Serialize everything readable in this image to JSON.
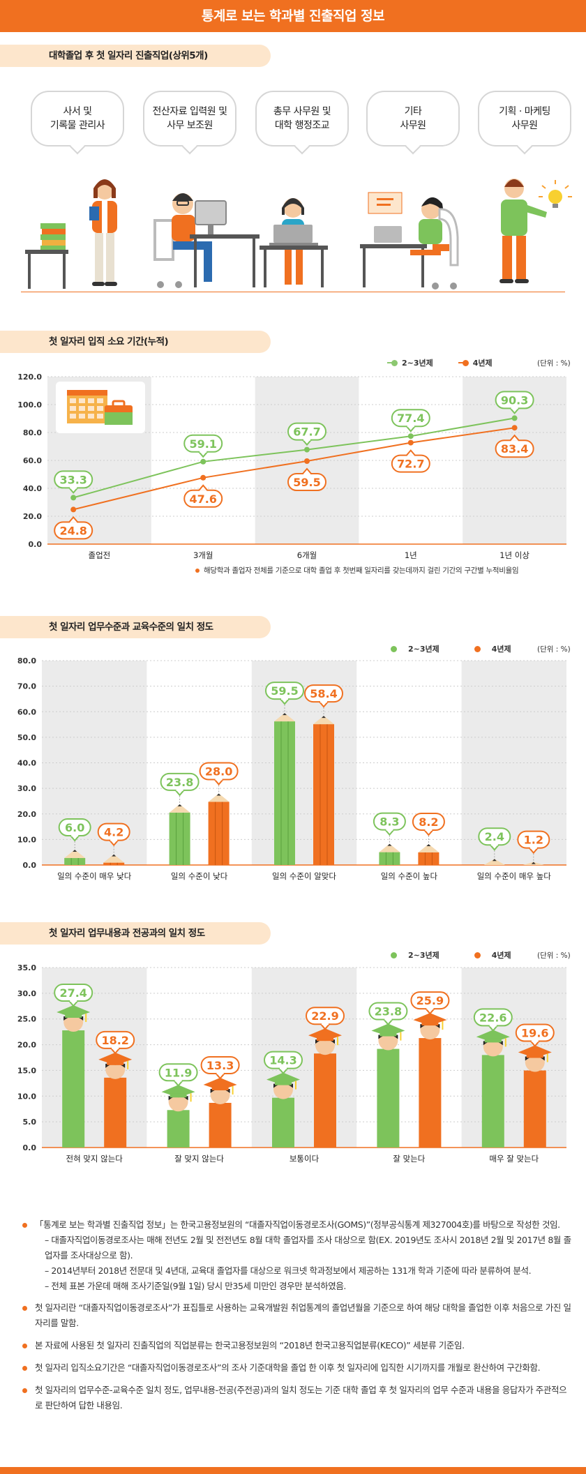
{
  "title": "통계로 보는 학과별 진출직업 정보",
  "colors": {
    "accent": "#f07020",
    "green": "#7dc35b",
    "green_line": "#8cc870",
    "panel": "#ebebeb",
    "section_bg": "#fde6cc"
  },
  "section1": {
    "heading": "대학졸업 후 첫 일자리 진출직업(상위5개)",
    "jobs": [
      "사서 및\n기록물 관리사",
      "전산자료 입력원 및\n사무 보조원",
      "총무 사무원 및\n대학 행정조교",
      "기타\n사무원",
      "기획 · 마케팅\n사무원"
    ]
  },
  "legend": {
    "series_a": "2~3년제",
    "series_b": "4년제",
    "unit": "(단위 : %)"
  },
  "chart1": {
    "heading": "첫 일자리 입직 소요 기간(누적)",
    "footnote": "해당학과 졸업자 전체를 기준으로 대학 졸업 후 첫번째 일자리를 갖는데까지 걸린 기간의 구간별 누적비율임"
  },
  "chart2": {
    "heading": "첫 일자리 업무수준과 교육수준의 일치 정도"
  },
  "chart3": {
    "heading": "첫 일자리 업무내용과 전공과의 일치 정도"
  },
  "chart_data": [
    {
      "type": "line",
      "title": "첫 일자리 입직 소요 기간(누적)",
      "categories": [
        "졸업전",
        "3개월",
        "6개월",
        "1년",
        "1년 이상"
      ],
      "ylim": [
        0,
        120
      ],
      "yticks": [
        "0.0",
        "20.0",
        "40.0",
        "60.0",
        "80.0",
        "100.0",
        "120.0"
      ],
      "series": [
        {
          "name": "2~3년제",
          "values": [
            33.3,
            59.1,
            67.7,
            77.4,
            90.3
          ],
          "labels": [
            "33.3",
            "59.1",
            "67.7",
            "77.4",
            "90.3"
          ]
        },
        {
          "name": "4년제",
          "values": [
            24.8,
            47.6,
            59.5,
            72.7,
            83.4
          ],
          "labels": [
            "24.8",
            "47.6",
            "59.5",
            "72.7",
            "83.4"
          ]
        }
      ]
    },
    {
      "type": "bar",
      "title": "첫 일자리 업무수준과 교육수준의 일치 정도",
      "categories": [
        "일의 수준이 매우 낮다",
        "일의 수준이 낮다",
        "일의 수준이 알맞다",
        "일의 수준이 높다",
        "일의 수준이 매우 높다"
      ],
      "ylim": [
        0,
        80
      ],
      "yticks": [
        "0.0",
        "10.0",
        "20.0",
        "30.0",
        "40.0",
        "50.0",
        "60.0",
        "70.0",
        "80.0"
      ],
      "series": [
        {
          "name": "2~3년제",
          "values": [
            6.0,
            23.8,
            59.5,
            8.3,
            2.4
          ],
          "labels": [
            "6.0",
            "23.8",
            "59.5",
            "8.3",
            "2.4"
          ]
        },
        {
          "name": "4년제",
          "values": [
            4.2,
            28.0,
            58.4,
            8.2,
            1.2
          ],
          "labels": [
            "4.2",
            "28.0",
            "58.4",
            "8.2",
            "1.2"
          ]
        }
      ]
    },
    {
      "type": "bar",
      "title": "첫 일자리 업무내용과 전공과의 일치 정도",
      "categories": [
        "전혀 맞지 않는다",
        "잘 맞지 않는다",
        "보통이다",
        "잘 맞는다",
        "매우 잘 맞는다"
      ],
      "ylim": [
        0,
        35
      ],
      "yticks": [
        "0.0",
        "5.0",
        "10.0",
        "15.0",
        "20.0",
        "25.0",
        "30.0",
        "35.0"
      ],
      "series": [
        {
          "name": "2~3년제",
          "values": [
            27.4,
            11.9,
            14.3,
            23.8,
            22.6
          ],
          "labels": [
            "27.4",
            "11.9",
            "14.3",
            "23.8",
            "22.6"
          ]
        },
        {
          "name": "4년제",
          "values": [
            18.2,
            13.3,
            22.9,
            25.9,
            19.6
          ],
          "labels": [
            "18.2",
            "13.3",
            "22.9",
            "25.9",
            "19.6"
          ]
        }
      ]
    }
  ],
  "notes": [
    {
      "text": "「통계로 보는 학과별 진출직업 정보」는 한국고용정보원의 “대졸자직업이동경로조사(GOMS)”(정부공식통계 제327004호)를 바탕으로 작성한 것임.",
      "subs": [
        "– 대졸자직업이동경로조사는 매해 전년도 2월 및 전전년도 8월 대학 졸업자를 조사 대상으로 함(EX. 2019년도 조사시 2018년 2월 및 2017년 8월 졸업자를 조사대상으로 함).",
        "– 2014년부터 2018년 전문대 및 4년대, 교육대 졸업자를 대상으로 워크넷 학과정보에서 제공하는 131개 학과 기준에 따라 분류하여 분석.",
        "– 전체 표본 가운데 매해 조사기준일(9월 1일) 당시 만35세 미만인 경우만 분석하였음."
      ]
    },
    {
      "text": "첫 일자리란 “대졸자직업이동경로조사”가 표집틀로 사용하는 교육개발원 취업통계의 졸업년월을 기준으로 하여 해당 대학을 졸업한 이후 처음으로 가진 일자리를 말함.",
      "subs": []
    },
    {
      "text": "본 자료에 사용된 첫 일자리 진출직업의 직업분류는 한국고용정보원의 “2018년 한국고용직업분류(KECO)” 세분류 기준임.",
      "subs": []
    },
    {
      "text": "첫 일자리 입직소요기간은 “대졸자직업이동경로조사”의 조사 기준대학을 졸업 한 이후 첫 일자리에 입직한 시기까지를 개월로 환산하여 구간화함.",
      "subs": []
    },
    {
      "text": "첫 일자리의 업무수준-교육수준 일치 정도, 업무내용-전공(주전공)과의 일치 정도는 기준 대학 졸업 후 첫 일자리의 업무 수준과 내용을 응답자가 주관적으로 판단하여 답한 내용임.",
      "subs": []
    }
  ]
}
